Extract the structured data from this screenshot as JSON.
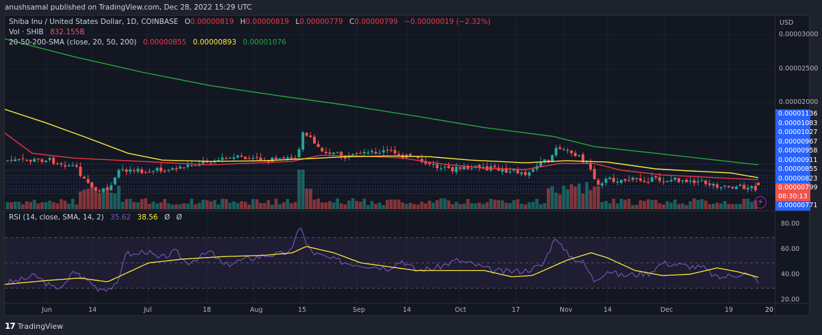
{
  "header": {
    "publisher_line": "anushsamal published on TradingView.com, Dec 28, 2022 15:29 UTC"
  },
  "symbol": {
    "title": "Shiba Inu / United States Dollar, 1D, COINBASE",
    "ohlc": {
      "O_label": "O",
      "O": "0.00000819",
      "H_label": "H",
      "H": "0.00000819",
      "L_label": "L",
      "L": "0.00000779",
      "C_label": "C",
      "C": "0.00000799",
      "change": "−0.00000019 (−2.32%)"
    }
  },
  "volume": {
    "label": "Vol · SHIB",
    "value": "832.155B"
  },
  "sma": {
    "label": "20-50-200-SMA (close, 20, 50, 200)",
    "sma20": "0.00000855",
    "sma50": "0.00000893",
    "sma200": "0.00001076"
  },
  "rsi": {
    "label": "RSI (14, close, SMA, 14, 2)",
    "rsi_value": "35.62",
    "sma_value": "38.56",
    "extra1": "Ø",
    "extra2": "Ø"
  },
  "price_axis": {
    "currency": "USD",
    "ticks": [
      "0.00003000",
      "0.00002500",
      "0.00002000"
    ],
    "tags": [
      "0.00001136",
      "0.00001083",
      "0.00001027",
      "0.00000967",
      "0.00000958",
      "0.00000911",
      "0.00000855",
      "0.00000823"
    ],
    "current_price": "0.00000799",
    "countdown": "08:30:13",
    "low_tag": "0.00000771"
  },
  "rsi_axis": {
    "ticks": [
      "80.00",
      "60.00",
      "40.00",
      "20.00"
    ]
  },
  "time_axis": {
    "labels": [
      "Jun",
      "14",
      "Jul",
      "18",
      "Aug",
      "15",
      "Sep",
      "14",
      "Oct",
      "17",
      "Nov",
      "14",
      "Dec",
      "19",
      "20"
    ]
  },
  "brand": {
    "name": "TradingView",
    "logo": "17"
  },
  "colors": {
    "background": "#131722",
    "up": "#26a69a",
    "down": "#ef5350",
    "sma20": "#f23645",
    "sma50": "#ffeb3b",
    "sma200": "#22ab3e",
    "rsi": "#7e57c2",
    "rsi_sma": "#ffeb3b",
    "tag_blue": "#2962ff",
    "tag_red": "#f0524f"
  },
  "chart_data": [
    {
      "type": "candlestick",
      "title": "Shiba Inu / United States Dollar, 1D, COINBASE",
      "xlabel": "",
      "ylabel": "USD",
      "x_ticks": [
        "Jun",
        "14",
        "Jul",
        "18",
        "Aug",
        "15",
        "Sep",
        "14",
        "Oct",
        "17",
        "Nov",
        "14",
        "Dec",
        "19",
        "20"
      ],
      "y_ticks": [
        3e-05,
        2.5e-05,
        2e-05
      ],
      "series": [
        {
          "name": "SMA 20",
          "color": "#f23645",
          "points": [
            [
              0,
              1.55e-05
            ],
            [
              40,
              1.25e-05
            ],
            [
              100,
              1.18e-05
            ],
            [
              200,
              1.13e-05
            ],
            [
              300,
              1.08e-05
            ],
            [
              420,
              1.13e-05
            ],
            [
              460,
              1.22e-05
            ],
            [
              520,
              1.21e-05
            ],
            [
              580,
              1.18e-05
            ],
            [
              640,
              1.09e-05
            ],
            [
              700,
              1.03e-05
            ],
            [
              760,
              1.01e-05
            ],
            [
              810,
              1.1e-05
            ],
            [
              860,
              1.1e-05
            ],
            [
              900,
              1e-05
            ],
            [
              960,
              9.3e-06
            ],
            [
              1000,
              9.1e-06
            ],
            [
              1040,
              8.9e-06
            ],
            [
              1100,
              8.6e-06
            ]
          ]
        },
        {
          "name": "SMA 50",
          "color": "#ffeb3b",
          "points": [
            [
              0,
              1.9e-05
            ],
            [
              60,
              1.7e-05
            ],
            [
              120,
              1.48e-05
            ],
            [
              180,
              1.25e-05
            ],
            [
              230,
              1.15e-05
            ],
            [
              300,
              1.13e-05
            ],
            [
              380,
              1.14e-05
            ],
            [
              440,
              1.17e-05
            ],
            [
              500,
              1.2e-05
            ],
            [
              560,
              1.21e-05
            ],
            [
              620,
              1.2e-05
            ],
            [
              680,
              1.15e-05
            ],
            [
              760,
              1.11e-05
            ],
            [
              820,
              1.14e-05
            ],
            [
              880,
              1.12e-05
            ],
            [
              950,
              1.02e-05
            ],
            [
              1000,
              9.9e-06
            ],
            [
              1060,
              9.6e-06
            ],
            [
              1100,
              8.9e-06
            ]
          ]
        },
        {
          "name": "SMA 200",
          "color": "#22ab3e",
          "points": [
            [
              0,
              2.94e-05
            ],
            [
              100,
              2.68e-05
            ],
            [
              200,
              2.45e-05
            ],
            [
              300,
              2.25e-05
            ],
            [
              400,
              2.1e-05
            ],
            [
              500,
              1.96e-05
            ],
            [
              600,
              1.8e-05
            ],
            [
              700,
              1.63e-05
            ],
            [
              800,
              1.5e-05
            ],
            [
              860,
              1.35e-05
            ],
            [
              950,
              1.25e-05
            ],
            [
              1100,
              1.08e-05
            ]
          ]
        }
      ],
      "last": {
        "open": 8.19e-06,
        "high": 8.19e-06,
        "low": 7.79e-06,
        "close": 7.99e-06
      },
      "volume_last": "832.155B"
    },
    {
      "type": "line",
      "title": "RSI (14, close, SMA, 14, 2)",
      "y_ticks": [
        80,
        60,
        40,
        20
      ],
      "bands": {
        "upper": 70,
        "middle": 50,
        "lower": 30
      },
      "series": [
        {
          "name": "RSI",
          "color": "#7e57c2",
          "last": 35.62
        },
        {
          "name": "RSI SMA",
          "color": "#ffeb3b",
          "last": 38.56
        }
      ]
    }
  ]
}
